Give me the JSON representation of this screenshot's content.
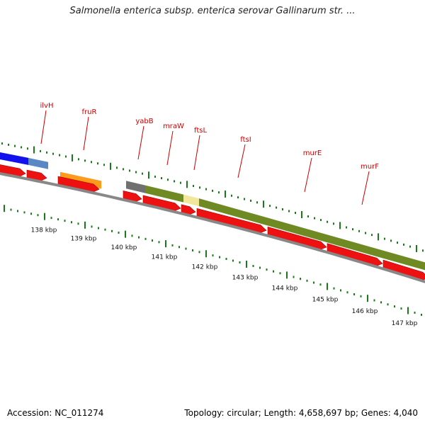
{
  "title": "Salmonella enterica subsp. enterica serovar Gallinarum str. ...",
  "footer": {
    "accession": "Accession: NC_011274",
    "stats": "Topology: circular; Length: 4,658,697 bp; Genes: 4,040"
  },
  "colors": {
    "cds_red": "#ee1111",
    "feature_blue": "#1111ee",
    "feature_steel": "#5a88c4",
    "feature_orange": "#ff9a1a",
    "feature_gray": "#707070",
    "feature_olive": "#6f8a22",
    "feature_yellow": "#f2e69a",
    "label_red": "#cc0000",
    "tick_green": "#1a7a1a",
    "backbone": "#888888"
  },
  "scale": {
    "labels": [
      "138 kbp",
      "139 kbp",
      "140 kbp",
      "141 kbp",
      "142 kbp",
      "143 kbp",
      "144 kbp",
      "145 kbp",
      "146 kbp",
      "147 kbp"
    ]
  },
  "genes": [
    {
      "name": "ilvH"
    },
    {
      "name": "fruR"
    },
    {
      "name": "yabB"
    },
    {
      "name": "mraW"
    },
    {
      "name": "ftsL"
    },
    {
      "name": "ftsI"
    },
    {
      "name": "murE"
    },
    {
      "name": "murF"
    }
  ]
}
